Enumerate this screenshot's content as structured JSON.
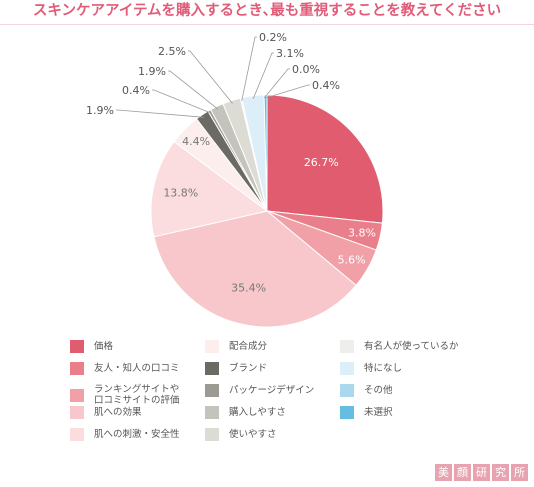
{
  "chart_data": {
    "type": "pie",
    "title": "スキンケアアイテムを購入するとき､最も重視することを教えてください",
    "slices": [
      {
        "name": "価格",
        "value": 26.7,
        "label": "26.7%",
        "color": "#e05c6e"
      },
      {
        "name": "友人・知人の口コミ",
        "value": 3.8,
        "label": "3.8%",
        "color": "#ea7f8c"
      },
      {
        "name": "ランキングサイトや\n口コミサイトの評価",
        "value": 5.6,
        "label": "5.6%",
        "color": "#f2a0a8"
      },
      {
        "name": "肌への効果",
        "value": 35.4,
        "label": "35.4%",
        "color": "#f7c7cc"
      },
      {
        "name": "肌への刺激・安全性",
        "value": 13.8,
        "label": "13.8%",
        "color": "#fbdde0"
      },
      {
        "name": "配合成分",
        "value": 4.4,
        "label": "4.4%",
        "color": "#fdeeee"
      },
      {
        "name": "ブランド",
        "value": 1.9,
        "label": "1.9%",
        "color": "#6b6b63"
      },
      {
        "name": "パッケージデザイン",
        "value": 0.4,
        "label": "0.4%",
        "color": "#9b9b93"
      },
      {
        "name": "購入しやすさ",
        "value": 1.9,
        "label": "1.9%",
        "color": "#c4c4bc"
      },
      {
        "name": "使いやすさ",
        "value": 2.5,
        "label": "2.5%",
        "color": "#dcdcd4"
      },
      {
        "name": "有名人が使っているか",
        "value": 0.2,
        "label": "0.2%",
        "color": "#eeeeec"
      },
      {
        "name": "特になし",
        "value": 3.1,
        "label": "3.1%",
        "color": "#dceef8"
      },
      {
        "name": "その他",
        "value": 0.0,
        "label": "0.0%",
        "color": "#a9d8ef"
      },
      {
        "name": "未選択",
        "value": 0.4,
        "label": "0.4%",
        "color": "#66bde2"
      }
    ],
    "legend_position": "bottom",
    "legend_order": [
      "価格",
      "配合成分",
      "有名人が使っているか",
      "友人・知人の口コミ",
      "ブランド",
      "特になし",
      "ランキングサイトや\n口コミサイトの評価",
      "パッケージデザイン",
      "その他",
      "肌への効果",
      "購入しやすさ",
      "未選択",
      "肌への刺激・安全性",
      "使いやすさ"
    ]
  },
  "brand": {
    "logo_chars": [
      "美",
      "顔",
      "研",
      "究",
      "所"
    ],
    "color": "#e8a3b0"
  }
}
